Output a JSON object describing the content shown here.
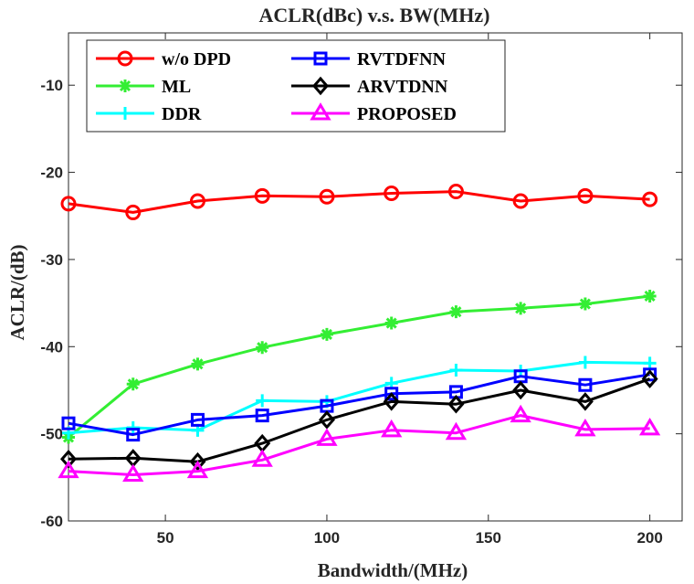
{
  "chart_data": {
    "type": "line",
    "title": "ACLR(dBc) v.s. BW(MHz)",
    "xlabel": "Bandwidth/(MHz)",
    "ylabel": "ACLR/(dB)",
    "xlim": [
      20,
      210
    ],
    "ylim": [
      -60,
      -4
    ],
    "xticks": [
      50,
      100,
      150,
      200
    ],
    "yticks": [
      -60,
      -50,
      -40,
      -30,
      -20,
      -10
    ],
    "grid": false,
    "legend_position": "top-left",
    "x": [
      20,
      40,
      60,
      80,
      100,
      120,
      140,
      160,
      180,
      200
    ],
    "series": [
      {
        "name": "w/o DPD",
        "color": "#ff0000",
        "marker": "circle",
        "values": [
          -23.6,
          -24.6,
          -23.3,
          -22.7,
          -22.8,
          -22.4,
          -22.2,
          -23.3,
          -22.7,
          -23.1
        ]
      },
      {
        "name": "ML",
        "color": "#33ee33",
        "marker": "asterisk",
        "values": [
          -50.4,
          -44.3,
          -42.0,
          -40.1,
          -38.6,
          -37.3,
          -36.0,
          -35.6,
          -35.1,
          -34.2
        ]
      },
      {
        "name": "DDR",
        "color": "#00ffff",
        "marker": "plus",
        "values": [
          -49.9,
          -49.3,
          -49.6,
          -46.2,
          -46.3,
          -44.2,
          -42.7,
          -42.8,
          -41.8,
          -41.9
        ]
      },
      {
        "name": "RVTDFNN",
        "color": "#0000ff",
        "marker": "square",
        "values": [
          -48.8,
          -50.1,
          -48.4,
          -47.9,
          -46.8,
          -45.4,
          -45.2,
          -43.4,
          -44.4,
          -43.2
        ]
      },
      {
        "name": "ARVTDNN",
        "color": "#000000",
        "marker": "diamond",
        "values": [
          -52.9,
          -52.8,
          -53.2,
          -51.1,
          -48.4,
          -46.3,
          -46.6,
          -45.0,
          -46.3,
          -43.7
        ]
      },
      {
        "name": "PROPOSED",
        "color": "#ff00ff",
        "marker": "triangle",
        "values": [
          -54.3,
          -54.7,
          -54.3,
          -53.0,
          -50.6,
          -49.6,
          -49.9,
          -47.9,
          -49.5,
          -49.4
        ]
      }
    ]
  }
}
